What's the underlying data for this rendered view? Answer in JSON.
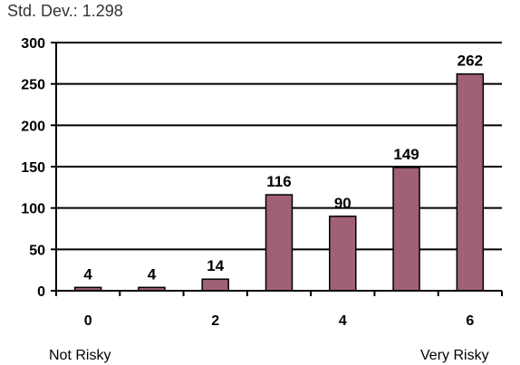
{
  "header": {
    "stat_line": "Std. Dev.: 1.298"
  },
  "chart_data": {
    "type": "bar",
    "categories": [
      "0",
      "1",
      "2",
      "3",
      "4",
      "5",
      "6"
    ],
    "values": [
      4,
      4,
      14,
      116,
      90,
      149,
      262
    ],
    "data_labels": [
      "4",
      "4",
      "14",
      "116",
      "90",
      "149",
      "262"
    ],
    "x_tick_labels": [
      "0",
      "",
      "2",
      "",
      "4",
      "",
      "6"
    ],
    "y_ticks": [
      0,
      50,
      100,
      150,
      200,
      250,
      300
    ],
    "y_tick_labels": [
      "0",
      "50",
      "100",
      "150",
      "200",
      "250",
      "300"
    ],
    "ylim": [
      0,
      300
    ],
    "grid": true,
    "bar_color": "#a06076",
    "title": "",
    "xlabel": "",
    "ylabel": "",
    "endpoint_labels": {
      "low": "Not Risky",
      "high": "Very Risky"
    }
  }
}
